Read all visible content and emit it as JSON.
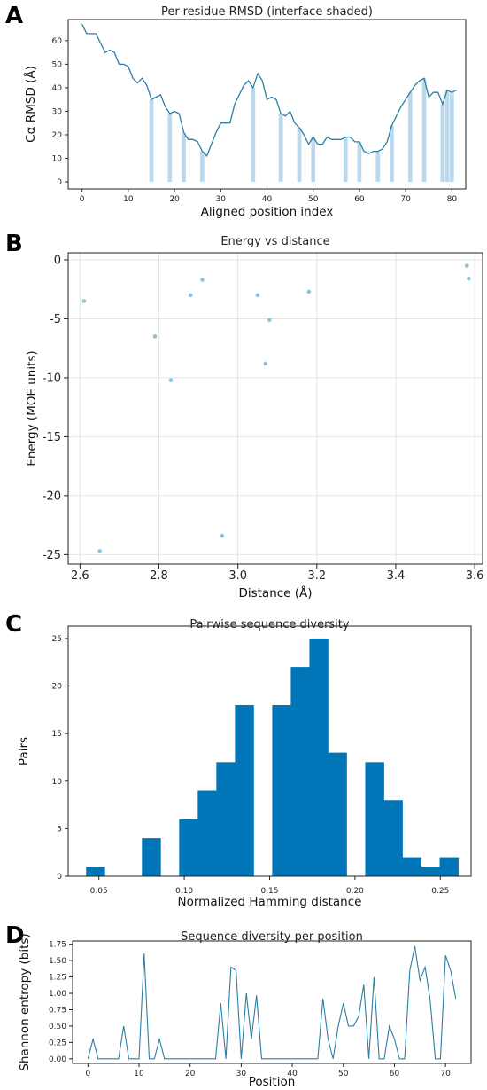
{
  "chart_data": [
    {
      "panel": "A",
      "type": "line",
      "title": "Per-residue RMSD (interface shaded)",
      "xlabel": "Aligned position index",
      "ylabel": "Cα RMSD (Å)",
      "xlim": [
        -3,
        83
      ],
      "ylim": [
        -3,
        69
      ],
      "xticks": [
        0,
        10,
        20,
        30,
        40,
        50,
        60,
        70,
        80
      ],
      "yticks": [
        0,
        10,
        20,
        30,
        40,
        50,
        60
      ],
      "grid": false,
      "colors": {
        "line": "#2b7fa6",
        "shade": "#bcd8ec"
      },
      "x": [
        0,
        1,
        2,
        3,
        4,
        5,
        6,
        7,
        8,
        9,
        10,
        11,
        12,
        13,
        14,
        15,
        16,
        17,
        18,
        19,
        20,
        21,
        22,
        23,
        24,
        25,
        26,
        27,
        28,
        29,
        30,
        31,
        32,
        33,
        34,
        35,
        36,
        37,
        38,
        39,
        40,
        41,
        42,
        43,
        44,
        45,
        46,
        47,
        48,
        49,
        50,
        51,
        52,
        53,
        54,
        55,
        56,
        57,
        58,
        59,
        60,
        61,
        62,
        63,
        64,
        65,
        66,
        67,
        68,
        69,
        70,
        71,
        72,
        73,
        74,
        75,
        76,
        77,
        78,
        79,
        80,
        81
      ],
      "values": [
        67,
        63,
        63,
        63,
        59,
        55,
        56,
        55,
        50,
        50,
        49,
        44,
        42,
        44,
        41,
        35,
        36,
        37,
        32,
        29,
        30,
        29,
        21,
        18,
        18,
        17,
        13,
        11,
        16,
        21,
        25,
        25,
        25,
        33,
        37,
        41,
        43,
        40,
        46,
        43,
        35,
        36,
        35,
        29,
        28,
        30,
        25,
        23,
        20,
        16,
        19,
        16,
        16,
        19,
        18,
        18,
        18,
        19,
        19,
        17,
        17,
        13,
        12,
        13,
        13,
        14,
        17,
        24,
        28,
        32,
        35,
        38,
        41,
        43,
        44,
        36,
        38,
        38,
        33,
        39,
        38,
        39
      ],
      "shaded_positions": [
        15,
        19,
        22,
        26,
        37,
        43,
        47,
        50,
        57,
        60,
        64,
        67,
        71,
        74,
        78,
        79,
        80
      ]
    },
    {
      "panel": "B",
      "type": "scatter",
      "title": "Energy vs distance",
      "xlabel": "Distance (Å)",
      "ylabel": "Energy (MOE units)",
      "xlim": [
        2.57,
        3.62
      ],
      "ylim": [
        -25.8,
        0.6
      ],
      "xticks": [
        2.6,
        2.8,
        3.0,
        3.2,
        3.4,
        3.6
      ],
      "xtick_labels": [
        "2.6",
        "2.8",
        "3.0",
        "3.2",
        "3.4",
        "3.6"
      ],
      "yticks": [
        0,
        -5,
        -10,
        -15,
        -20,
        -25
      ],
      "grid": true,
      "colors": {
        "point": "#8cc4dc"
      },
      "x": [
        2.61,
        2.65,
        2.79,
        2.83,
        2.88,
        2.91,
        2.96,
        3.05,
        3.07,
        3.08,
        3.18,
        3.58,
        3.585
      ],
      "values": [
        -3.5,
        -24.7,
        -6.5,
        -10.2,
        -3.0,
        -1.7,
        -23.4,
        -3.0,
        -8.8,
        -5.1,
        -2.7,
        -0.5,
        -1.6
      ]
    },
    {
      "panel": "C",
      "type": "bar",
      "title": "Pairwise sequence diversity",
      "xlabel": "Normalized Hamming distance",
      "ylabel": "Pairs",
      "xlim": [
        0.032,
        0.268
      ],
      "ylim": [
        0,
        26.3
      ],
      "xticks": [
        0.05,
        0.1,
        0.15,
        0.2,
        0.25
      ],
      "xtick_labels": [
        "0.05",
        "0.10",
        "0.15",
        "0.20",
        "0.25"
      ],
      "yticks": [
        0,
        5,
        10,
        15,
        20,
        25
      ],
      "grid": false,
      "colors": {
        "bar": "#0075b8"
      },
      "bin_width": 0.0109,
      "bin_start": 0.0425,
      "values": [
        1,
        0,
        0,
        4,
        0,
        6,
        9,
        12,
        18,
        0,
        18,
        22,
        25,
        13,
        0,
        12,
        8,
        2,
        1,
        2
      ]
    },
    {
      "panel": "D",
      "type": "line",
      "title": "Sequence diversity per position",
      "xlabel": "Position",
      "ylabel": "Shannon entropy (bits)",
      "xlim": [
        -3,
        75
      ],
      "ylim": [
        -0.07,
        1.8
      ],
      "xticks": [
        0,
        10,
        20,
        30,
        40,
        50,
        60,
        70
      ],
      "yticks": [
        0.0,
        0.25,
        0.5,
        0.75,
        1.0,
        1.25,
        1.5,
        1.75
      ],
      "ytick_labels": [
        "0.00",
        "0.25",
        "0.50",
        "0.75",
        "1.00",
        "1.25",
        "1.50",
        "1.75"
      ],
      "grid": false,
      "colors": {
        "line": "#2b7fa6"
      },
      "x": [
        0,
        1,
        2,
        3,
        4,
        5,
        6,
        7,
        8,
        9,
        10,
        11,
        12,
        13,
        14,
        15,
        16,
        17,
        18,
        19,
        20,
        21,
        22,
        23,
        24,
        25,
        26,
        27,
        28,
        29,
        30,
        31,
        32,
        33,
        34,
        35,
        36,
        37,
        38,
        39,
        40,
        41,
        42,
        43,
        44,
        45,
        46,
        47,
        48,
        49,
        50,
        51,
        52,
        53,
        54,
        55,
        56,
        57,
        58,
        59,
        60,
        61,
        62,
        63,
        64,
        65,
        66,
        67,
        68,
        69,
        70,
        71,
        72
      ],
      "values": [
        0,
        0.3,
        0,
        0,
        0,
        0,
        0,
        0.5,
        0,
        0,
        0,
        1.61,
        0,
        0,
        0.3,
        0,
        0,
        0,
        0,
        0,
        0,
        0,
        0,
        0,
        0,
        0,
        0.85,
        0,
        1.4,
        1.35,
        0,
        1.0,
        0.3,
        0.97,
        0,
        0,
        0,
        0,
        0,
        0,
        0,
        0,
        0,
        0,
        0,
        0,
        0.92,
        0.3,
        0,
        0.5,
        0.85,
        0.5,
        0.5,
        0.65,
        1.13,
        0,
        1.25,
        0,
        0,
        0.5,
        0.3,
        0,
        0,
        1.35,
        1.72,
        1.2,
        1.4,
        0.9,
        0,
        0,
        1.58,
        1.35,
        0.92
      ]
    }
  ]
}
